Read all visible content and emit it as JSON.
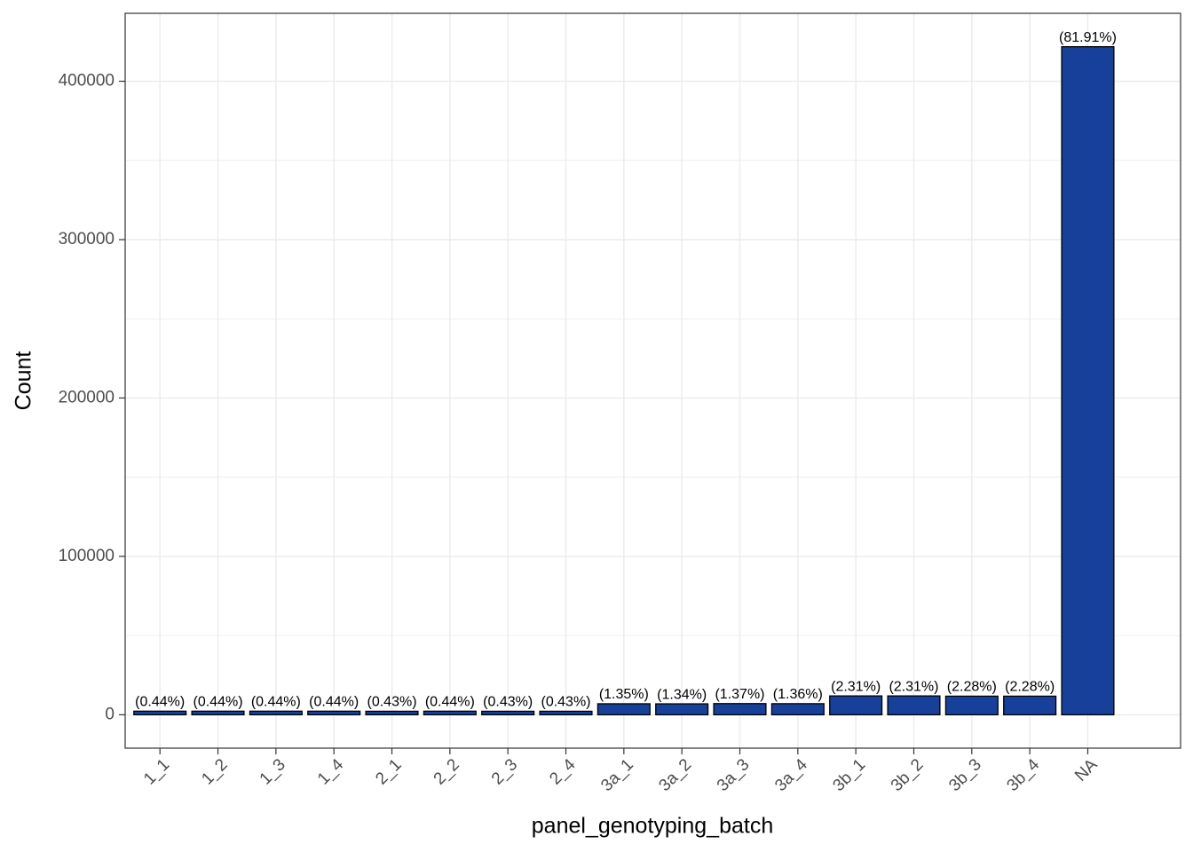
{
  "chart_data": {
    "type": "bar",
    "x_label": "panel_genotyping_batch",
    "y_label": "Count",
    "categories": [
      "1_1",
      "1_2",
      "1_3",
      "1_4",
      "2_1",
      "2_2",
      "2_3",
      "2_4",
      "3a_1",
      "3a_2",
      "3a_3",
      "3a_4",
      "3b_1",
      "3b_2",
      "3b_3",
      "3b_4",
      "NA"
    ],
    "values": [
      2266,
      2266,
      2266,
      2266,
      2214,
      2266,
      2214,
      2214,
      6952,
      6900,
      7055,
      7004,
      11896,
      11896,
      11741,
      11741,
      421800
    ],
    "percent_labels": [
      "(0.44%)",
      "(0.44%)",
      "(0.44%)",
      "(0.44%)",
      "(0.43%)",
      "(0.44%)",
      "(0.43%)",
      "(0.43%)",
      "(1.35%)",
      "(1.34%)",
      "(1.37%)",
      "(1.36%)",
      "(2.31%)",
      "(2.31%)",
      "(2.28%)",
      "(2.28%)",
      "(81.91%)"
    ],
    "color": "#16409a",
    "ylim": [
      -21090,
      442890
    ],
    "yticks": [
      0,
      100000,
      200000,
      300000,
      400000
    ],
    "minor_yticks": [
      50000,
      150000,
      250000,
      350000
    ],
    "grid": true
  }
}
